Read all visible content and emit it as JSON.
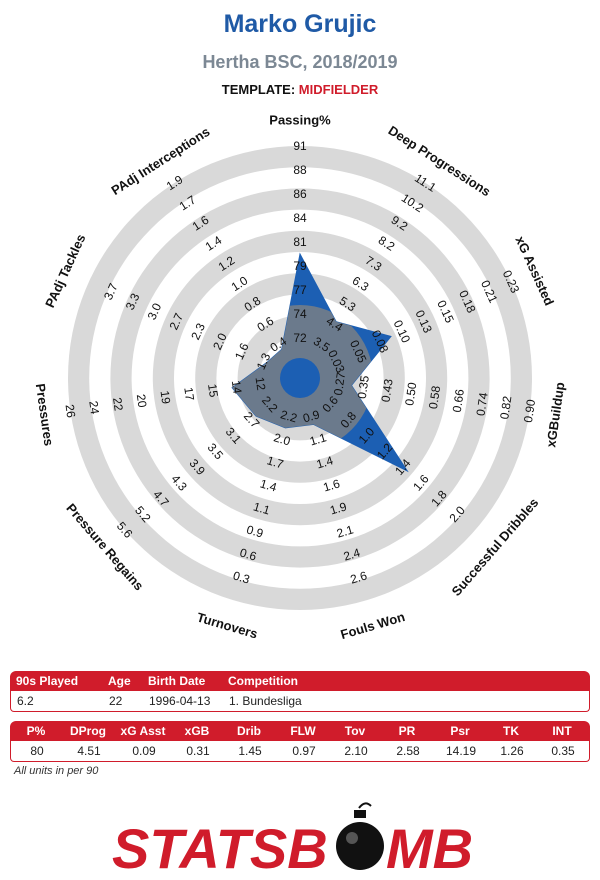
{
  "header": {
    "player": "Marko Grujic",
    "team_season": "Hertha BSC, 2018/2019",
    "template_label": "TEMPLATE:",
    "template_value": "MIDFIELDER"
  },
  "chart_data": {
    "type": "radar",
    "rings": 5,
    "colors": {
      "ring_gray": "#d9d9d9",
      "area_blue": "#1c5fb3",
      "area_gray": "#6b7a8c",
      "center_blue": "#1c5fb3"
    },
    "axes": [
      {
        "label": "Passing%",
        "ticks": [
          "72",
          "74",
          "77",
          "79",
          "81",
          "84",
          "86",
          "88",
          "91"
        ],
        "value": 80
      },
      {
        "label": "Deep Progressions",
        "ticks": [
          "3.5",
          "4.4",
          "5.3",
          "6.3",
          "7.3",
          "8.2",
          "9.2",
          "10.2",
          "11.1"
        ],
        "value": 4.51
      },
      {
        "label": "xG Assisted",
        "ticks": [
          "0.03",
          "0.05",
          "0.08",
          "0.10",
          "0.13",
          "0.15",
          "0.18",
          "0.21",
          "0.23"
        ],
        "value": 0.09
      },
      {
        "label": "xGBuildup",
        "ticks": [
          "0.27",
          "0.35",
          "0.43",
          "0.50",
          "0.58",
          "0.66",
          "0.74",
          "0.82",
          "0.90"
        ],
        "value": 0.31
      },
      {
        "label": "Successful Dribbles",
        "ticks": [
          "0.6",
          "0.8",
          "1.0",
          "1.2",
          "1.4",
          "1.6",
          "1.8",
          "2.0"
        ],
        "value": 1.45
      },
      {
        "label": "Fouls Won",
        "ticks": [
          "0.9",
          "1.1",
          "1.4",
          "1.6",
          "1.9",
          "2.1",
          "2.4",
          "2.6"
        ],
        "value": 0.97
      },
      {
        "label": "Turnovers",
        "ticks": [
          "2.2",
          "2.0",
          "1.7",
          "1.4",
          "1.1",
          "0.9",
          "0.6",
          "0.3"
        ],
        "value": 2.1
      },
      {
        "label": "Pressure Regains",
        "ticks": [
          "2.2",
          "2.7",
          "3.1",
          "3.5",
          "3.9",
          "4.3",
          "4.7",
          "5.2",
          "5.6"
        ],
        "value": 2.58
      },
      {
        "label": "Pressures",
        "ticks": [
          "12",
          "14",
          "15",
          "17",
          "19",
          "20",
          "22",
          "24",
          "26"
        ],
        "value": 14.19
      },
      {
        "label": "PAdj Tackles",
        "ticks": [
          "1.3",
          "1.6",
          "2.0",
          "2.3",
          "2.7",
          "3.0",
          "3.3",
          "3.7"
        ],
        "value": 1.26
      },
      {
        "label": "PAdj Interceptions",
        "ticks": [
          "0.4",
          "0.6",
          "0.8",
          "1.0",
          "1.2",
          "1.4",
          "1.6",
          "1.7",
          "1.9"
        ],
        "value": 0.35
      }
    ],
    "legend_free": true
  },
  "info_table": {
    "headers": [
      "90s Played",
      "Age",
      "Birth Date",
      "Competition"
    ],
    "values": [
      "6.2",
      "22",
      "1996-04-13",
      "1. Bundesliga"
    ]
  },
  "stats_table": {
    "headers": [
      "P%",
      "DProg",
      "xG Asst",
      "xGB",
      "Drib",
      "FLW",
      "Tov",
      "PR",
      "Psr",
      "TK",
      "INT"
    ],
    "values": [
      "80",
      "4.51",
      "0.09",
      "0.31",
      "1.45",
      "0.97",
      "2.10",
      "2.58",
      "14.19",
      "1.26",
      "0.35"
    ]
  },
  "footnote": "All units in per 90",
  "logo": {
    "text_left": "STATSB",
    "text_right": "MB",
    "color": "#d01c2b"
  }
}
